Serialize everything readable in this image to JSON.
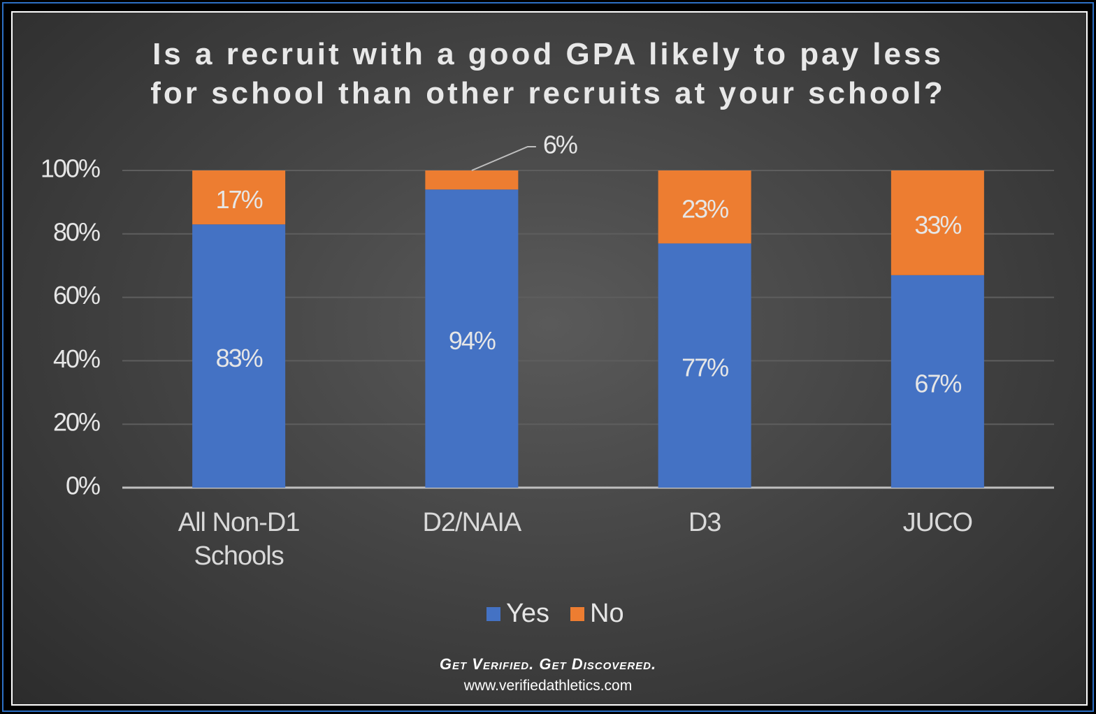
{
  "chart_data": {
    "type": "stacked_bar",
    "title": "Is a recruit with a good GPA likely to pay less for school than other recruits at your school?",
    "categories": [
      "All Non-D1 Schools",
      "D2/NAIA",
      "D3",
      "JUCO"
    ],
    "series": [
      {
        "name": "Yes",
        "color": "#4472c4",
        "values": [
          83,
          94,
          77,
          67
        ],
        "value_labels": [
          "83%",
          "94%",
          "77%",
          "67%"
        ]
      },
      {
        "name": "No",
        "color": "#ed7d31",
        "values": [
          17,
          6,
          23,
          33
        ],
        "value_labels": [
          "17%",
          "6%",
          "23%",
          "33%"
        ]
      }
    ],
    "ylim": [
      0,
      100
    ],
    "yticks": [
      {
        "value": 0,
        "label": "0%"
      },
      {
        "value": 20,
        "label": "20%"
      },
      {
        "value": 40,
        "label": "40%"
      },
      {
        "value": 60,
        "label": "60%"
      },
      {
        "value": 80,
        "label": "80%"
      },
      {
        "value": 100,
        "label": "100%"
      }
    ],
    "grid": true,
    "legend": "bottom"
  },
  "footer": {
    "tagline": "Get Verified. Get Discovered.",
    "url": "www.verifiedathletics.com"
  }
}
